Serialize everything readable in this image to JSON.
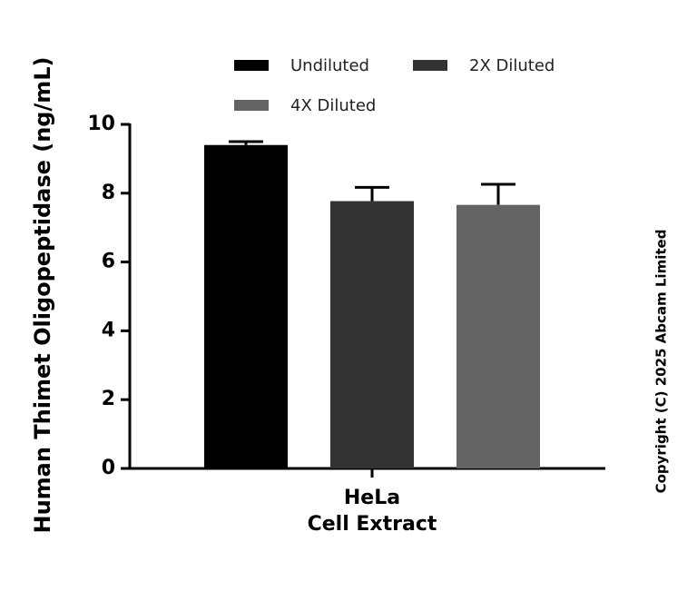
{
  "chart_data": {
    "type": "bar",
    "y_label": "Human Thimet Oligopeptidase (ng/mL)",
    "categories": [
      "HeLa\nCell Extract"
    ],
    "series": [
      {
        "name": "Undiluted",
        "color": "#000000",
        "values": [
          9.4
        ],
        "errors": [
          0.1
        ]
      },
      {
        "name": "2X Diluted",
        "color": "#333333",
        "values": [
          7.77
        ],
        "errors": [
          0.4
        ]
      },
      {
        "name": "4X Diluted",
        "color": "#636363",
        "values": [
          7.66
        ],
        "errors": [
          0.6
        ]
      }
    ],
    "ylim": [
      0,
      10
    ],
    "yticks": [
      0,
      2,
      4,
      6,
      8,
      10
    ],
    "copyright": "Copyright (C) 2025 Abcam Limited"
  }
}
